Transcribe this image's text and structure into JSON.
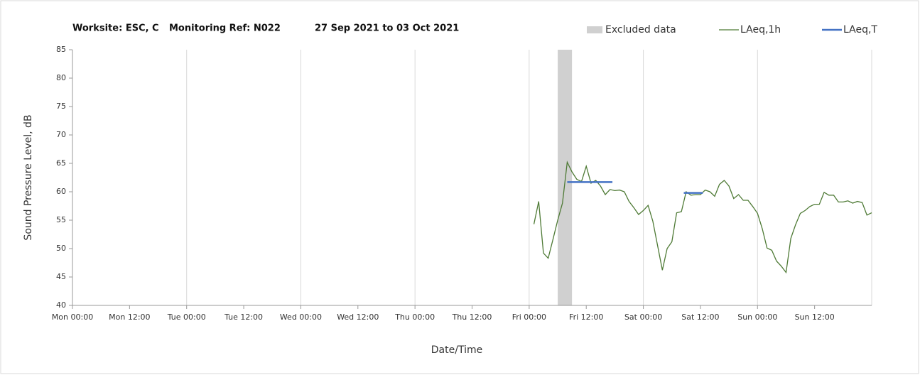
{
  "chart_data": {
    "type": "line",
    "title": [
      "Worksite: ESC, C",
      "Monitoring Ref: N022",
      "27 Sep 2021 to 03 Oct 2021"
    ],
    "xlabel": "Date/Time",
    "ylabel": "Sound Pressure Level, dB",
    "xlim": [
      0,
      168
    ],
    "ylim": [
      40,
      85
    ],
    "xticks": [
      {
        "value": 0,
        "label": "Mon 00:00"
      },
      {
        "value": 12,
        "label": "Mon 12:00"
      },
      {
        "value": 24,
        "label": "Tue 00:00"
      },
      {
        "value": 36,
        "label": "Tue 12:00"
      },
      {
        "value": 48,
        "label": "Wed 00:00"
      },
      {
        "value": 60,
        "label": "Wed 12:00"
      },
      {
        "value": 72,
        "label": "Thu 00:00"
      },
      {
        "value": 84,
        "label": "Thu 12:00"
      },
      {
        "value": 96,
        "label": "Fri 00:00"
      },
      {
        "value": 108,
        "label": "Fri 12:00"
      },
      {
        "value": 120,
        "label": "Sat 00:00"
      },
      {
        "value": 132,
        "label": "Sat 12:00"
      },
      {
        "value": 144,
        "label": "Sun 00:00"
      },
      {
        "value": 156,
        "label": "Sun 12:00"
      }
    ],
    "yticks": [
      40,
      45,
      50,
      55,
      60,
      65,
      70,
      75,
      80,
      85
    ],
    "grid": "x",
    "excluded": {
      "name": "Excluded data",
      "color": "#d0d0d0",
      "x": [
        102,
        105
      ]
    },
    "series": [
      {
        "name": "LAeq,1h",
        "color": "#4e7a35",
        "x": [
          97,
          98,
          99,
          100,
          101,
          102,
          103,
          104,
          105,
          106,
          107,
          108,
          109,
          110,
          111,
          112,
          113,
          114,
          115,
          116,
          117,
          118,
          119,
          120,
          121,
          122,
          123,
          124,
          125,
          126,
          127,
          128,
          129,
          130,
          131,
          132,
          133,
          134,
          135,
          136,
          137,
          138,
          139,
          140,
          141,
          142,
          143,
          144,
          145,
          146,
          147,
          148,
          149,
          150,
          151,
          152,
          153,
          154,
          155,
          156,
          157,
          158,
          159,
          160,
          161,
          162,
          163,
          164,
          165,
          166,
          167,
          168
        ],
        "values": [
          54.3,
          58.3,
          49.2,
          48.3,
          51.6,
          55,
          58,
          65.2,
          63.5,
          62.2,
          61.8,
          64.5,
          61.5,
          62,
          61,
          59.5,
          60.4,
          60.2,
          60.3,
          60,
          58.3,
          57.2,
          56,
          56.7,
          57.6,
          54.8,
          50.5,
          46.2,
          50,
          51.2,
          56.3,
          56.5,
          60,
          59.4,
          59.5,
          59.5,
          60.3,
          60,
          59.2,
          61.3,
          62,
          61,
          58.8,
          59.5,
          58.5,
          58.5,
          57.4,
          56.2,
          53.5,
          50.1,
          49.7,
          47.8,
          46.9,
          45.8,
          51.8,
          54.2,
          56.2,
          56.7,
          57.4,
          57.8,
          57.8,
          59.9,
          59.4,
          59.4,
          58.2,
          58.2,
          58.4,
          58,
          58.3,
          58.1,
          55.9,
          56.3
        ]
      },
      {
        "name": "LAeq,T",
        "color": "#4472c4",
        "segments": [
          {
            "x": [
              104,
              113.5
            ],
            "values": [
              61.7,
              61.7
            ]
          },
          {
            "x": [
              128.5,
              132.5
            ],
            "values": [
              59.8,
              59.8
            ]
          }
        ]
      }
    ]
  }
}
